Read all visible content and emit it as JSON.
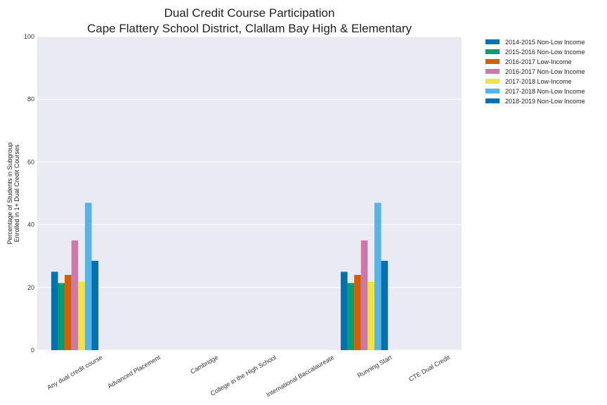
{
  "chart_data": {
    "type": "bar",
    "title": "Dual Credit Course Participation",
    "subtitle": "Cape Flattery School District, Clallam Bay High & Elementary",
    "ylabel_line1": "Percentage of Students in Subgroup",
    "ylabel_line2": "Enrolled in 1+ Dual Credit Courses",
    "xlabel": "",
    "ylim": [
      0,
      100
    ],
    "yticks": [
      0,
      20,
      40,
      60,
      80,
      100
    ],
    "grid": true,
    "legend_placement": "outside-top-right",
    "background_color": "#eaeaf2",
    "categories": [
      "Any dual credit course",
      "Advanced Placement",
      "Cambridge",
      "College in the High School",
      "International Baccalaureate",
      "Running Start",
      "CTE Dual Credit"
    ],
    "series": [
      {
        "name": "2014-2015 Non-Low Income",
        "color": "#0072b2",
        "values": [
          25,
          null,
          null,
          null,
          null,
          25,
          null
        ]
      },
      {
        "name": "2015-2016 Non-Low Income",
        "color": "#009e73",
        "values": [
          21.4,
          null,
          null,
          null,
          null,
          21.4,
          null
        ]
      },
      {
        "name": "2016-2017 Low-Income",
        "color": "#d55e00",
        "values": [
          24,
          null,
          null,
          null,
          null,
          24,
          null
        ]
      },
      {
        "name": "2016-2017 Non-Low Income",
        "color": "#cc79a7",
        "values": [
          35,
          null,
          null,
          null,
          null,
          35,
          null
        ]
      },
      {
        "name": "2017-2018 Low-Income",
        "color": "#f0e442",
        "values": [
          21.8,
          null,
          null,
          null,
          null,
          21.8,
          null
        ]
      },
      {
        "name": "2017-2018 Non-Low Income",
        "color": "#56b4e9",
        "values": [
          47,
          null,
          null,
          null,
          null,
          47,
          null
        ]
      },
      {
        "name": "2018-2019 Non-Low Income",
        "color": "#0072b2",
        "values": [
          28.5,
          null,
          null,
          null,
          null,
          28.5,
          null
        ]
      }
    ]
  }
}
